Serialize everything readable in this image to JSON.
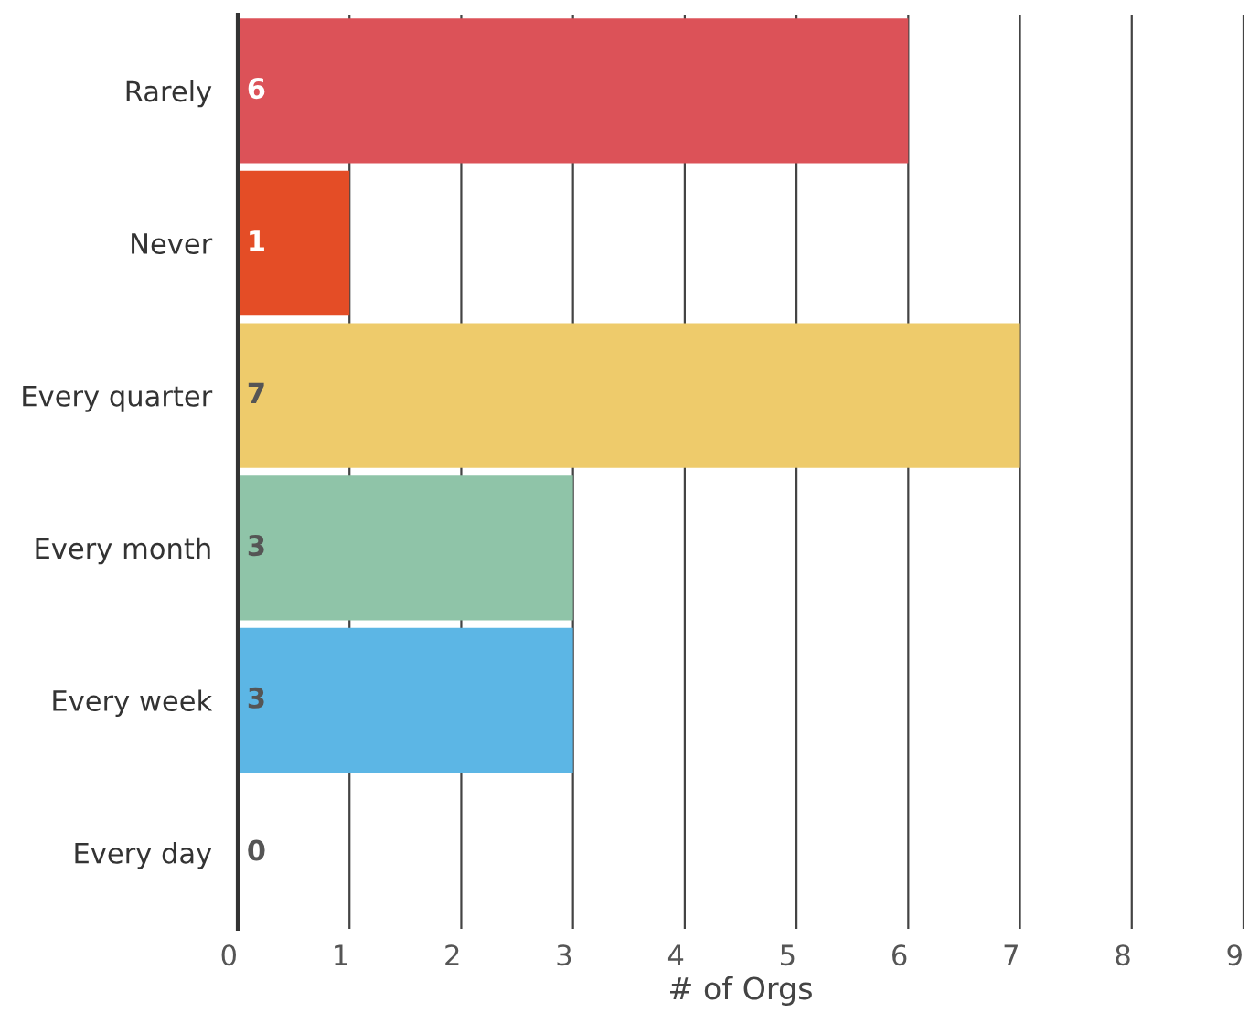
{
  "chart_data": {
    "type": "bar",
    "orientation": "horizontal",
    "xlabel": "# of Orgs",
    "categories": [
      "Rarely",
      "Never",
      "Every quarter",
      "Every month",
      "Every week",
      "Every day"
    ],
    "values": [
      6,
      1,
      7,
      3,
      3,
      0
    ],
    "colors": [
      "#dc5258",
      "#e44d26",
      "#eecb6b",
      "#8fc4a8",
      "#5cb6e5",
      "#999999"
    ],
    "xlim": [
      0,
      9
    ],
    "xticks": [
      0,
      1,
      2,
      3,
      4,
      5,
      6,
      7,
      8,
      9
    ],
    "grid": "x",
    "data_labels": true
  }
}
